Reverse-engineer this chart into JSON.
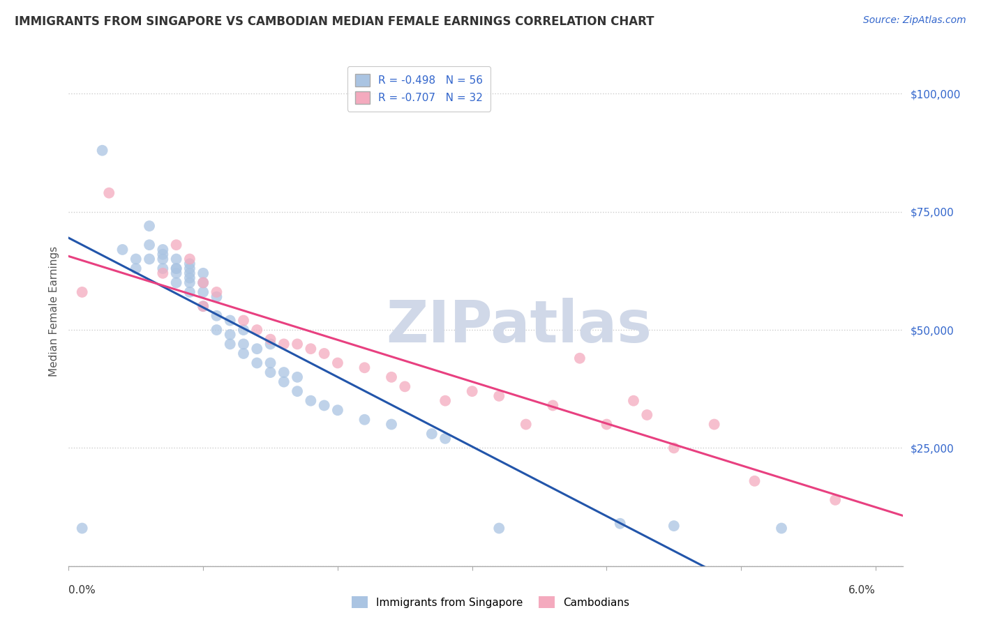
{
  "title": "IMMIGRANTS FROM SINGAPORE VS CAMBODIAN MEDIAN FEMALE EARNINGS CORRELATION CHART",
  "source": "Source: ZipAtlas.com",
  "ylabel": "Median Female Earnings",
  "ytick_positions": [
    0,
    25000,
    50000,
    75000,
    100000
  ],
  "ytick_labels": [
    "",
    "$25,000",
    "$50,000",
    "$75,000",
    "$100,000"
  ],
  "xtick_positions": [
    0.0,
    0.01,
    0.02,
    0.03,
    0.04,
    0.05,
    0.06
  ],
  "xlim": [
    0.0,
    0.062
  ],
  "ylim": [
    0,
    108000
  ],
  "legend_blue_r": "R = -0.498",
  "legend_blue_n": "N = 56",
  "legend_pink_r": "R = -0.707",
  "legend_pink_n": "N = 32",
  "legend_blue_label": "Immigrants from Singapore",
  "legend_pink_label": "Cambodians",
  "blue_color": "#aac4e2",
  "pink_color": "#f4aabe",
  "line_blue_color": "#2255aa",
  "line_pink_color": "#e84080",
  "watermark_color": "#d0d8e8",
  "background_color": "#ffffff",
  "grid_color": "#cccccc",
  "title_color": "#333333",
  "source_color": "#3366cc",
  "ytick_color": "#3366cc",
  "xtick_color": "#333333",
  "blue_scatter_x": [
    0.001,
    0.0025,
    0.004,
    0.005,
    0.005,
    0.006,
    0.006,
    0.006,
    0.007,
    0.007,
    0.007,
    0.007,
    0.008,
    0.008,
    0.008,
    0.008,
    0.008,
    0.009,
    0.009,
    0.009,
    0.009,
    0.009,
    0.009,
    0.01,
    0.01,
    0.01,
    0.01,
    0.011,
    0.011,
    0.011,
    0.012,
    0.012,
    0.012,
    0.013,
    0.013,
    0.013,
    0.014,
    0.014,
    0.015,
    0.015,
    0.015,
    0.016,
    0.016,
    0.017,
    0.017,
    0.018,
    0.019,
    0.02,
    0.022,
    0.024,
    0.027,
    0.028,
    0.032,
    0.041,
    0.045,
    0.053
  ],
  "blue_scatter_y": [
    8000,
    88000,
    67000,
    63000,
    65000,
    65000,
    68000,
    72000,
    63000,
    65000,
    66000,
    67000,
    60000,
    62000,
    63000,
    63000,
    65000,
    58000,
    60000,
    61000,
    62000,
    63000,
    64000,
    55000,
    58000,
    60000,
    62000,
    50000,
    53000,
    57000,
    47000,
    49000,
    52000,
    45000,
    47000,
    50000,
    43000,
    46000,
    41000,
    43000,
    47000,
    39000,
    41000,
    37000,
    40000,
    35000,
    34000,
    33000,
    31000,
    30000,
    28000,
    27000,
    8000,
    9000,
    8500,
    8000
  ],
  "pink_scatter_x": [
    0.001,
    0.003,
    0.007,
    0.008,
    0.009,
    0.01,
    0.01,
    0.011,
    0.013,
    0.014,
    0.015,
    0.016,
    0.017,
    0.018,
    0.019,
    0.02,
    0.022,
    0.024,
    0.025,
    0.028,
    0.03,
    0.032,
    0.034,
    0.036,
    0.038,
    0.04,
    0.042,
    0.043,
    0.045,
    0.048,
    0.051,
    0.057
  ],
  "pink_scatter_y": [
    58000,
    79000,
    62000,
    68000,
    65000,
    60000,
    55000,
    58000,
    52000,
    50000,
    48000,
    47000,
    47000,
    46000,
    45000,
    43000,
    42000,
    40000,
    38000,
    35000,
    37000,
    36000,
    30000,
    34000,
    44000,
    30000,
    35000,
    32000,
    25000,
    30000,
    18000,
    14000
  ],
  "title_fontsize": 12,
  "source_fontsize": 10,
  "axis_label_fontsize": 11,
  "tick_fontsize": 11,
  "legend_fontsize": 11,
  "watermark_text": "ZIPatlas",
  "watermark_fontsize": 60
}
